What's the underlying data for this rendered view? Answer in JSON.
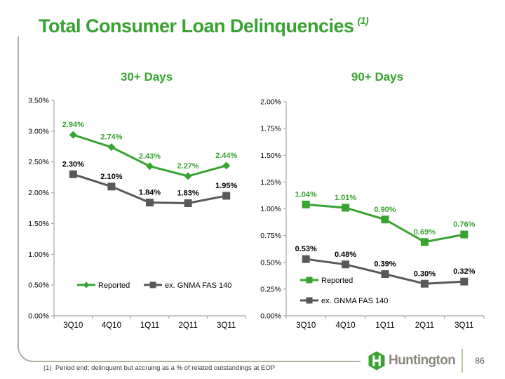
{
  "title": {
    "text": "Total Consumer Loan Delinquencies",
    "superscript": "(1)"
  },
  "colors": {
    "green": "#38a331",
    "gray": "#595959",
    "label_black": "#000000",
    "axis": "#a6a6a6",
    "frame": "#b5aca0",
    "brand_text": "#8b897e",
    "divider": "#b7c9a3",
    "footnote_text": "#3a3a3a",
    "page_number": "#595959"
  },
  "chart_data": [
    {
      "type": "line",
      "title": "30+ Days",
      "categories": [
        "3Q10",
        "4Q10",
        "1Q11",
        "2Q11",
        "3Q11"
      ],
      "ylim": [
        0,
        3.5
      ],
      "ytick_step": 0.5,
      "y_ticks": [
        "3.50%",
        "3.00%",
        "2.50%",
        "2.00%",
        "1.50%",
        "1.00%",
        "0.50%",
        "0.00%"
      ],
      "grid": false,
      "legend_position": "inline-bottom",
      "series": [
        {
          "name": "Reported",
          "color_key": "green",
          "marker": "diamond",
          "values": [
            2.94,
            2.74,
            2.43,
            2.27,
            2.44
          ],
          "labels": [
            "2.94%",
            "2.74%",
            "2.43%",
            "2.27%",
            "2.44%"
          ],
          "label_color_key": "green"
        },
        {
          "name": "ex. GNMA FAS 140",
          "color_key": "gray",
          "marker": "square",
          "values": [
            2.3,
            2.1,
            1.84,
            1.83,
            1.95
          ],
          "labels": [
            "2.30%",
            "2.10%",
            "1.84%",
            "1.83%",
            "1.95%"
          ],
          "label_color_key": "label_black"
        }
      ]
    },
    {
      "type": "line",
      "title": "90+ Days",
      "categories": [
        "3Q10",
        "4Q10",
        "1Q11",
        "2Q11",
        "3Q11"
      ],
      "ylim": [
        0,
        2.0
      ],
      "ytick_step": 0.25,
      "y_ticks": [
        "2.00%",
        "1.75%",
        "1.50%",
        "1.25%",
        "1.00%",
        "0.75%",
        "0.50%",
        "0.25%",
        "0.00%"
      ],
      "grid": false,
      "legend_position": "stacked-bottom-left",
      "series": [
        {
          "name": "Reported",
          "color_key": "green",
          "marker": "square",
          "values": [
            1.04,
            1.01,
            0.9,
            0.69,
            0.76
          ],
          "labels": [
            "1.04%",
            "1.01%",
            "0.90%",
            "0.69%",
            "0.76%"
          ],
          "label_color_key": "green"
        },
        {
          "name": "ex. GNMA FAS 140",
          "color_key": "gray",
          "marker": "square",
          "values": [
            0.53,
            0.48,
            0.39,
            0.3,
            0.32
          ],
          "labels": [
            "0.53%",
            "0.48%",
            "0.39%",
            "0.30%",
            "0.32%"
          ],
          "label_color_key": "label_black"
        }
      ]
    }
  ],
  "footnote": "(1)  Period end; delinquent but accruing as a % of related outstandings at EOP",
  "footer": {
    "brand": "Huntington",
    "page_number": "86"
  }
}
